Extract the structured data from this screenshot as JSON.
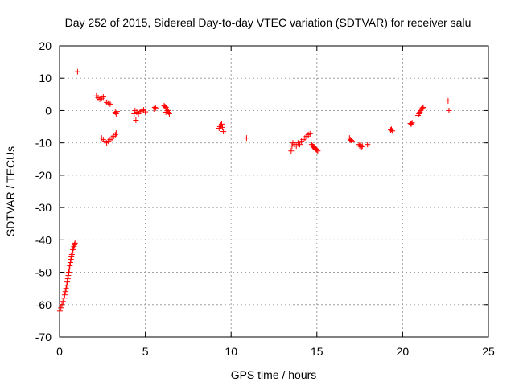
{
  "chart_data": {
    "type": "scatter",
    "title": "Day 252 of 2015, Sidereal Day-to-day VTEC variation (SDTVAR) for receiver salu",
    "xlabel": "GPS time / hours",
    "ylabel": "SDTVAR / TECUs",
    "xlim": [
      0,
      25
    ],
    "ylim": [
      -70,
      20
    ],
    "xticks": [
      0,
      5,
      10,
      15,
      20,
      25
    ],
    "yticks": [
      20,
      10,
      0,
      -10,
      -20,
      -30,
      -40,
      -50,
      -60,
      -70
    ],
    "grid": true,
    "marker": "+",
    "color": "#ff0000",
    "series": [
      {
        "name": "SDTVAR",
        "x": [
          0.02,
          0.08,
          0.14,
          0.2,
          0.26,
          0.3,
          0.34,
          0.38,
          0.42,
          0.45,
          0.48,
          0.51,
          0.54,
          0.57,
          0.6,
          0.63,
          0.66,
          0.69,
          0.72,
          0.75,
          0.78,
          0.81,
          0.84,
          0.87,
          0.9,
          1.05,
          2.15,
          2.25,
          2.35,
          2.45,
          2.55,
          2.65,
          2.75,
          2.85,
          2.95,
          3.25,
          3.3,
          3.35,
          2.45,
          2.55,
          2.65,
          2.75,
          2.85,
          2.95,
          3.05,
          3.15,
          3.25,
          3.3,
          4.35,
          4.45,
          4.4,
          4.5,
          4.6,
          4.7,
          4.8,
          4.9,
          5.0,
          5.5,
          5.55,
          5.6,
          6.1,
          6.15,
          6.2,
          6.25,
          6.3,
          6.35,
          6.4,
          6.2,
          6.3,
          9.3,
          9.35,
          9.4,
          9.45,
          9.5,
          9.55,
          10.9,
          13.5,
          13.55,
          13.6,
          13.7,
          13.8,
          13.9,
          14.0,
          14.1,
          14.2,
          14.3,
          14.4,
          14.5,
          14.6,
          14.7,
          14.75,
          14.8,
          14.85,
          14.9,
          14.95,
          15.0,
          15.05,
          16.9,
          16.95,
          17.0,
          17.05,
          17.45,
          17.5,
          17.55,
          17.6,
          17.65,
          17.95,
          19.3,
          19.35,
          19.4,
          20.45,
          20.5,
          20.55,
          20.9,
          20.95,
          21.0,
          21.05,
          21.1,
          21.15,
          21.2,
          22.65,
          22.7
        ],
        "y": [
          -62,
          -61,
          -60,
          -59,
          -58,
          -57,
          -56,
          -55,
          -54,
          -53,
          -52,
          -51,
          -50,
          -49,
          -48,
          -47,
          -46,
          -45,
          -44.5,
          -44,
          -43,
          -42.5,
          -42,
          -41.5,
          -41,
          12,
          4.5,
          4,
          3.5,
          3.8,
          4.2,
          3,
          2.5,
          2.3,
          2,
          -0.5,
          -1,
          -0.3,
          -8.5,
          -9,
          -9.5,
          -10,
          -9.5,
          -9,
          -8.5,
          -8,
          -7.5,
          -7,
          -1,
          -3,
          0,
          -0.5,
          -1,
          -0.3,
          0,
          0.2,
          -0.4,
          0.5,
          1,
          0.8,
          1.5,
          1.2,
          1,
          0.5,
          0,
          -0.5,
          -1,
          -0.5,
          0,
          -5.5,
          -5,
          -4.5,
          -4.2,
          -5.2,
          -6.5,
          -8.5,
          -12.5,
          -11,
          -10,
          -10.5,
          -11,
          -10,
          -10.5,
          -9.5,
          -9,
          -8.5,
          -8,
          -7.5,
          -7.2,
          -10.5,
          -11,
          -11.2,
          -11.5,
          -11.8,
          -12,
          -12.2,
          -12.5,
          -8.5,
          -9,
          -9.2,
          -9.5,
          -10.5,
          -11,
          -10.8,
          -11.2,
          -11,
          -10.5,
          -6,
          -5.8,
          -6.3,
          -4,
          -4.2,
          -3.8,
          -1.5,
          -1,
          -0.5,
          0,
          0.5,
          0.8,
          1,
          3,
          0
        ]
      }
    ]
  }
}
